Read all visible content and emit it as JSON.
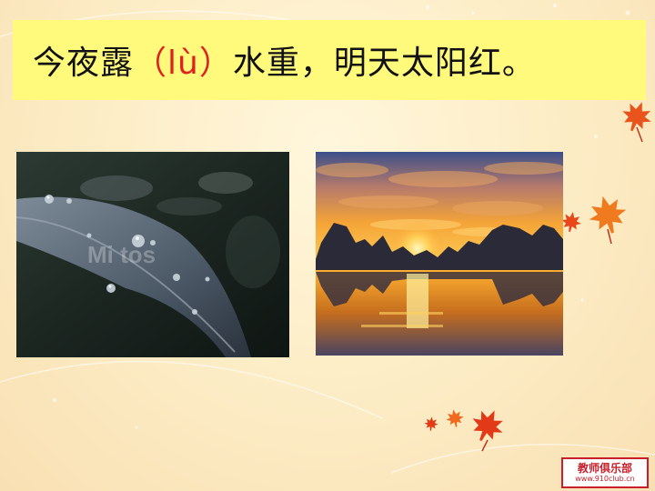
{
  "title": {
    "before": "今夜露",
    "pinyin": "（lù）",
    "after": "水重，明天太阳红。"
  },
  "photos": {
    "left_watermark": "Mi    tos"
  },
  "logo": {
    "line1": "教师俱乐部",
    "line2": "www.910club.cn"
  },
  "colors": {
    "title_background": "#fffa7c",
    "pinyin": "#e02020",
    "leaf_accent": "#e8541c"
  }
}
